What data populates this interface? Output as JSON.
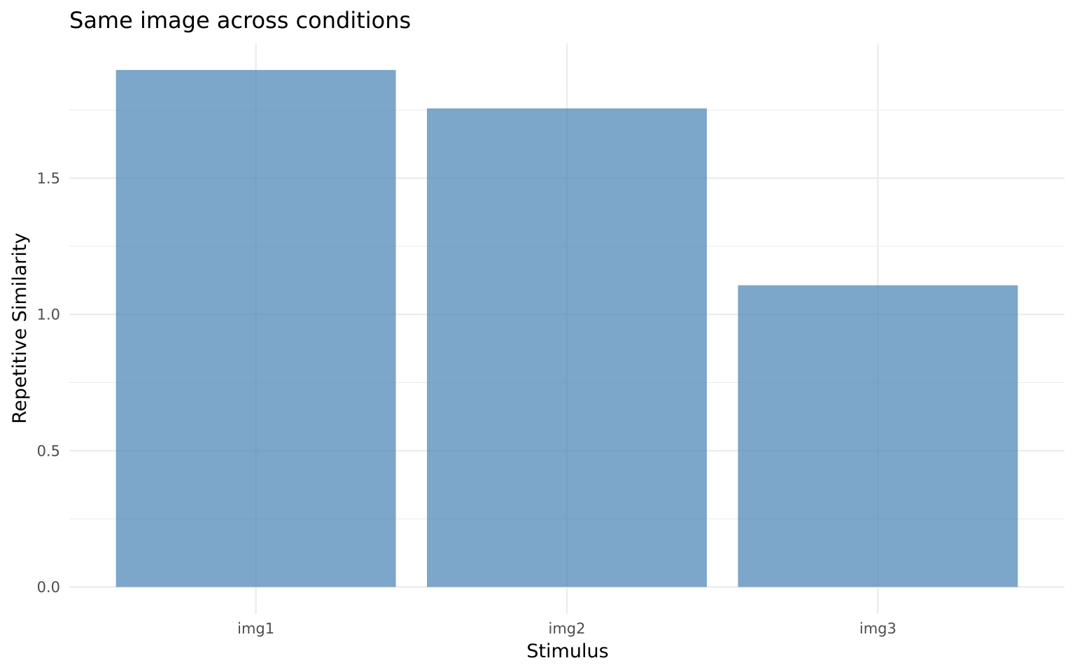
{
  "chart_data": {
    "type": "bar",
    "title": "Same image across conditions",
    "xlabel": "Stimulus",
    "ylabel": "Repetitive Similarity",
    "categories": [
      "img1",
      "img2",
      "img3"
    ],
    "values": [
      1.897,
      1.756,
      1.107
    ],
    "ylim": [
      0,
      1.95
    ],
    "yticks": [
      0.0,
      0.5,
      1.0,
      1.5
    ],
    "ytick_labels": [
      "0.0",
      "0.5",
      "1.0",
      "1.5"
    ],
    "grid": true,
    "legend": "none",
    "bar_color": "#4682b4",
    "bar_opacity": 0.7
  }
}
